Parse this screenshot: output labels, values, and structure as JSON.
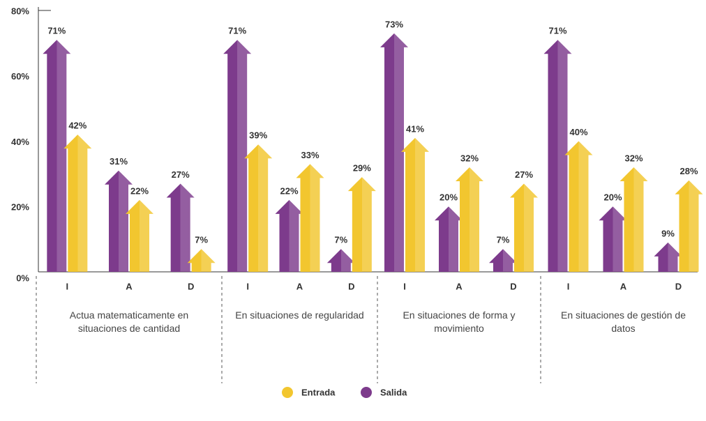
{
  "chart_data": {
    "type": "arrow-bar",
    "categories": [
      "I",
      "A",
      "D",
      "I",
      "A",
      "D",
      "I",
      "A",
      "D",
      "I",
      "A",
      "D"
    ],
    "groups": [
      "Actua matematicamente en situaciones de cantidad",
      "En situaciones de regularidad",
      "En situaciones de forma y movimiento",
      "En situaciones de gestión de datos"
    ],
    "series": [
      {
        "name": "Entrada",
        "color": "#f2c62f",
        "values": [
          42,
          22,
          7,
          39,
          33,
          29,
          41,
          32,
          27,
          40,
          32,
          28
        ],
        "value_labels": [
          "42%",
          "22%",
          "7%",
          "39%",
          "33%",
          "29%",
          "41%",
          "32%",
          "27%",
          "40%",
          "32%",
          "28%"
        ]
      },
      {
        "name": "Salida",
        "color": "#7d3b8c",
        "values": [
          71,
          31,
          27,
          71,
          22,
          7,
          73,
          20,
          7,
          71,
          20,
          9
        ],
        "value_labels": [
          "71%",
          "31%",
          "27%",
          "71%",
          "22%",
          "7%",
          "73%",
          "20%",
          "7%",
          "71%",
          "20%",
          "9%"
        ]
      }
    ],
    "ylim": [
      0,
      80
    ],
    "yticks": [
      {
        "value": 0,
        "label": "0%"
      },
      {
        "value": 20,
        "label": "20%"
      },
      {
        "value": 40,
        "label": "40%"
      },
      {
        "value": 60,
        "label": "60%"
      },
      {
        "value": 80,
        "label": "80%"
      }
    ],
    "legend": "bottom"
  }
}
